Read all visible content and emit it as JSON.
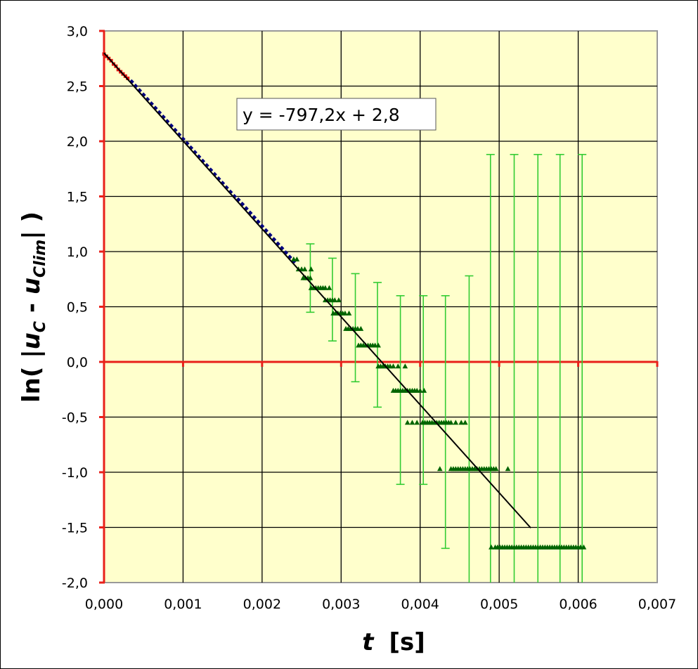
{
  "chart_data": {
    "type": "scatter",
    "xlabel_main": "t",
    "xlabel_unit": "[s]",
    "ylabel_prefix": "ln( |",
    "ylabel_u1": "u",
    "ylabel_sub1": "C",
    "ylabel_mid": " - ",
    "ylabel_u2": "u",
    "ylabel_sub2": "Clim",
    "ylabel_suffix": "| )",
    "xlim": [
      0,
      0.007
    ],
    "ylim": [
      -2.0,
      3.0
    ],
    "x_ticks": [
      "0,000",
      "0,001",
      "0,002",
      "0,003",
      "0,004",
      "0,005",
      "0,006",
      "0,007"
    ],
    "y_ticks": [
      "3,0",
      "2,5",
      "2,0",
      "1,5",
      "1,0",
      "0,5",
      "0,0",
      "-0,5",
      "-1,0",
      "-1,5",
      "-2,0"
    ],
    "grid": true,
    "colors": {
      "plot_bg": "#FFFFCC",
      "axis": "#E8201A",
      "grid": "#000000",
      "red_points": "#E01010",
      "blue_points": "#00007F",
      "green_points": "#006400",
      "error_bars": "#33CC33",
      "fit": "#000000"
    },
    "trendline": {
      "label": "y = -797,2x + 2,8",
      "slope": -797.2,
      "intercept": 2.8,
      "x_range": [
        0,
        0.0054
      ]
    },
    "series": [
      {
        "marker": "square",
        "color": "#E01010",
        "x": [
          0,
          3e-05,
          6e-05,
          9e-05,
          0.00012,
          0.00015,
          0.00018,
          0.00021,
          0.00024,
          0.00027,
          0.0003
        ],
        "y": [
          2.79,
          2.77,
          2.75,
          2.73,
          2.7,
          2.68,
          2.65,
          2.63,
          2.61,
          2.59,
          2.57
        ]
      },
      {
        "marker": "diamond",
        "color": "#00007F",
        "x": [
          0.00035,
          0.0004,
          0.00045,
          0.0005,
          0.00055,
          0.0006,
          0.00065,
          0.0007,
          0.00075,
          0.0008,
          0.00085,
          0.0009,
          0.00095,
          0.001,
          0.00105,
          0.0011,
          0.00115,
          0.0012,
          0.00125,
          0.0013,
          0.00135,
          0.0014,
          0.00145,
          0.0015,
          0.00155,
          0.0016,
          0.00165,
          0.0017,
          0.00175,
          0.0018,
          0.00185,
          0.0019,
          0.00195,
          0.002,
          0.00205,
          0.0021,
          0.00215,
          0.0022,
          0.00225,
          0.0023,
          0.00235,
          0.0024
        ],
        "y": [
          2.54,
          2.5,
          2.46,
          2.42,
          2.38,
          2.34,
          2.3,
          2.26,
          2.22,
          2.18,
          2.14,
          2.1,
          2.06,
          2.02,
          1.98,
          1.94,
          1.9,
          1.86,
          1.82,
          1.78,
          1.74,
          1.7,
          1.66,
          1.62,
          1.58,
          1.54,
          1.5,
          1.47,
          1.43,
          1.39,
          1.35,
          1.31,
          1.27,
          1.23,
          1.19,
          1.15,
          1.11,
          1.07,
          1.03,
          0.99,
          0.95,
          0.91
        ]
      },
      {
        "marker": "triangle",
        "color": "#006400",
        "levels": [
          {
            "y": 0.93,
            "x": [
              0.0024,
              0.00244
            ]
          },
          {
            "y": 0.84,
            "x": [
              0.00246,
              0.0025,
              0.00254,
              0.00262
            ]
          },
          {
            "y": 0.76,
            "x": [
              0.00252,
              0.00255,
              0.00258,
              0.00261
            ]
          },
          {
            "y": 0.67,
            "x": [
              0.00262,
              0.00265,
              0.00268,
              0.00271,
              0.00274,
              0.00277,
              0.0028,
              0.00285
            ]
          },
          {
            "y": 0.56,
            "x": [
              0.0028,
              0.00283,
              0.00286,
              0.00289,
              0.00292,
              0.00297
            ]
          },
          {
            "y": 0.44,
            "x": [
              0.0029,
              0.00293,
              0.00296,
              0.00299,
              0.00302,
              0.00305,
              0.0031
            ]
          },
          {
            "y": 0.3,
            "x": [
              0.00306,
              0.00309,
              0.00312,
              0.00315,
              0.00318,
              0.00321,
              0.00325
            ]
          },
          {
            "y": 0.15,
            "x": [
              0.00322,
              0.00325,
              0.00328,
              0.00331,
              0.00334,
              0.00337,
              0.0034,
              0.00343,
              0.00347
            ]
          },
          {
            "y": -0.04,
            "x": [
              0.00347,
              0.0035,
              0.00353,
              0.00356,
              0.00359,
              0.00362,
              0.00366,
              0.00372,
              0.00381
            ]
          },
          {
            "y": -0.26,
            "x": [
              0.00366,
              0.00369,
              0.00372,
              0.00375,
              0.00378,
              0.00381,
              0.00384,
              0.00387,
              0.0039,
              0.00393,
              0.00396,
              0.004,
              0.00405
            ]
          },
          {
            "y": -0.55,
            "x": [
              0.00384,
              0.0039,
              0.00396,
              0.00403,
              0.00406,
              0.00409,
              0.00412,
              0.00415,
              0.00418,
              0.00421,
              0.00424,
              0.00427,
              0.0043,
              0.00433,
              0.00436,
              0.00439,
              0.00445,
              0.00452,
              0.00457
            ]
          },
          {
            "y": -0.97,
            "x": [
              0.00425,
              0.00439,
              0.00442,
              0.00445,
              0.00448,
              0.00451,
              0.00454,
              0.00457,
              0.0046,
              0.00463,
              0.00466,
              0.00469,
              0.00472,
              0.00475,
              0.00478,
              0.00481,
              0.00484,
              0.00487,
              0.0049,
              0.00493,
              0.00496,
              0.00511
            ]
          },
          {
            "y": -1.68,
            "x": [
              0.0049,
              0.00495,
              0.00498,
              0.00501,
              0.00504,
              0.00507,
              0.0051,
              0.00513,
              0.00516,
              0.00519,
              0.00522,
              0.00525,
              0.00528,
              0.00531,
              0.00534,
              0.00537,
              0.0054,
              0.00543,
              0.00546,
              0.00549,
              0.00552,
              0.00555,
              0.00558,
              0.00561,
              0.00564,
              0.00567,
              0.0057,
              0.00573,
              0.00576,
              0.00579,
              0.00582,
              0.00585,
              0.00588,
              0.00591,
              0.00594,
              0.00597,
              0.006,
              0.00603,
              0.00607
            ]
          }
        ]
      }
    ],
    "error_bars": [
      {
        "x": 0.00261,
        "low": 0.45,
        "high": 1.07
      },
      {
        "x": 0.00289,
        "low": 0.19,
        "high": 0.94
      },
      {
        "x": 0.00318,
        "low": -0.18,
        "high": 0.8
      },
      {
        "x": 0.00346,
        "low": -0.41,
        "high": 0.72
      },
      {
        "x": 0.00375,
        "low": -1.11,
        "high": 0.6
      },
      {
        "x": 0.00404,
        "low": -1.11,
        "high": 0.6
      },
      {
        "x": 0.00432,
        "low": -1.69,
        "high": 0.6
      },
      {
        "x": 0.00462,
        "low": -2.0,
        "high": 0.78
      },
      {
        "x": 0.00489,
        "low": -2.0,
        "high": 1.88
      },
      {
        "x": 0.00519,
        "low": -2.0,
        "high": 1.88
      },
      {
        "x": 0.00549,
        "low": -2.0,
        "high": 1.88
      },
      {
        "x": 0.00577,
        "low": -2.0,
        "high": 1.88
      },
      {
        "x": 0.00605,
        "low": -2.0,
        "high": 1.88
      }
    ]
  }
}
